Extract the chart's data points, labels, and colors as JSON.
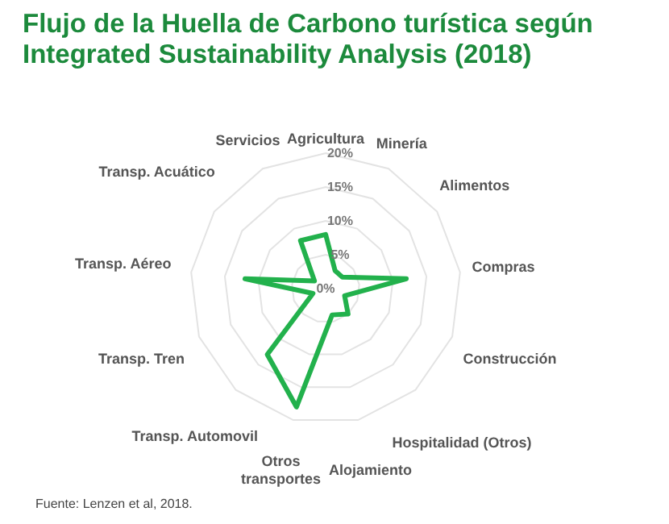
{
  "chart_data": {
    "type": "radar",
    "title": "Flujo de la Huella de Carbono turística según Integrated Sustainability Analysis (2018)",
    "categories": [
      "Agricultura",
      "Minería",
      "Alimentos",
      "Compras",
      "Construcción",
      "Hospitalidad (Otros)",
      "Alojamiento",
      "Otros transportes",
      "Transp. Automovil",
      "Transp. Tren",
      "Transp. Aéreo",
      "Transp. Acuático",
      "Servicios"
    ],
    "series": [
      {
        "color": "#22b14c",
        "values": [
          8,
          3,
          3,
          12,
          3,
          5,
          4,
          18,
          13,
          2,
          12,
          2,
          8
        ]
      }
    ],
    "ylim": [
      0,
      20
    ],
    "yticks": [
      {
        "value": 0,
        "label": "0%"
      },
      {
        "value": 5,
        "label": "5%"
      },
      {
        "value": 10,
        "label": "10%"
      },
      {
        "value": 15,
        "label": "15%"
      },
      {
        "value": 20,
        "label": "20%"
      }
    ],
    "grid": true,
    "legend": false,
    "marker": "none",
    "line_style": "solid",
    "annotations": [
      "Fuente: Lenzen et al, 2018."
    ]
  }
}
